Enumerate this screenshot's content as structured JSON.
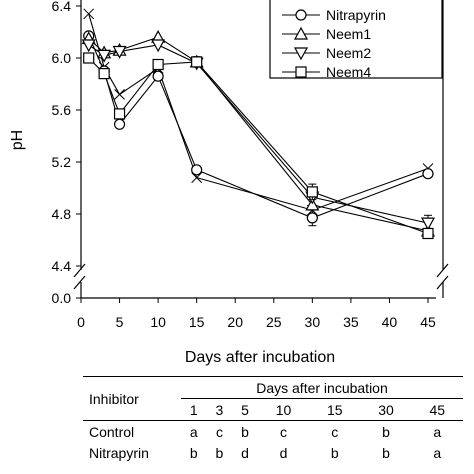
{
  "chart_data": {
    "type": "line",
    "title": "",
    "xlabel": "Days after incubation",
    "ylabel": "pH",
    "xlim": [
      0,
      45
    ],
    "x_ticks": [
      0,
      5,
      10,
      15,
      20,
      25,
      30,
      35,
      40,
      45
    ],
    "ylim": [
      4.4,
      6.4
    ],
    "y_ticks": [
      4.4,
      4.8,
      5.2,
      5.6,
      6.0,
      6.4
    ],
    "y_extra_tick": 0.0,
    "y_axis_break": true,
    "legend_position": "top-right",
    "x": [
      1,
      3,
      5,
      10,
      15,
      30,
      45
    ],
    "series": [
      {
        "name": "",
        "marker": "x",
        "values": [
          6.34,
          5.93,
          5.72,
          5.92,
          5.08,
          4.83,
          5.15
        ],
        "err": [
          0,
          0,
          0,
          0,
          0,
          0,
          0
        ]
      },
      {
        "name": "Nitrapyrin",
        "marker": "circle",
        "values": [
          6.17,
          5.9,
          5.49,
          5.86,
          5.14,
          4.77,
          5.11
        ],
        "err": [
          0,
          0,
          0,
          0,
          0,
          0.06,
          0
        ]
      },
      {
        "name": "Neem1",
        "marker": "triangle-up",
        "values": [
          6.15,
          6.04,
          6.06,
          6.16,
          5.97,
          4.87,
          4.67
        ],
        "err": [
          0,
          0,
          0,
          0,
          0,
          0,
          0
        ]
      },
      {
        "name": "Neem2",
        "marker": "triangle-down",
        "values": [
          6.1,
          6.02,
          6.05,
          6.1,
          5.96,
          4.93,
          4.73
        ],
        "err": [
          0,
          0,
          0,
          0,
          0.03,
          0,
          0.06
        ]
      },
      {
        "name": "Neem4",
        "marker": "square",
        "values": [
          6.0,
          5.88,
          5.57,
          5.95,
          5.97,
          4.97,
          4.65
        ],
        "err": [
          0,
          0,
          0,
          0,
          0.04,
          0.06,
          0
        ]
      }
    ]
  },
  "table": {
    "inhibitor_header": "Inhibitor",
    "days_header": "Days after incubation",
    "days": [
      "1",
      "3",
      "5",
      "10",
      "15",
      "30",
      "45"
    ],
    "rows": [
      {
        "label": "Control",
        "values": [
          "a",
          "c",
          "b",
          "c",
          "c",
          "b",
          "a"
        ]
      },
      {
        "label": "Nitrapyrin",
        "values": [
          "b",
          "b",
          "d",
          "d",
          "b",
          "b",
          "a"
        ]
      }
    ]
  }
}
